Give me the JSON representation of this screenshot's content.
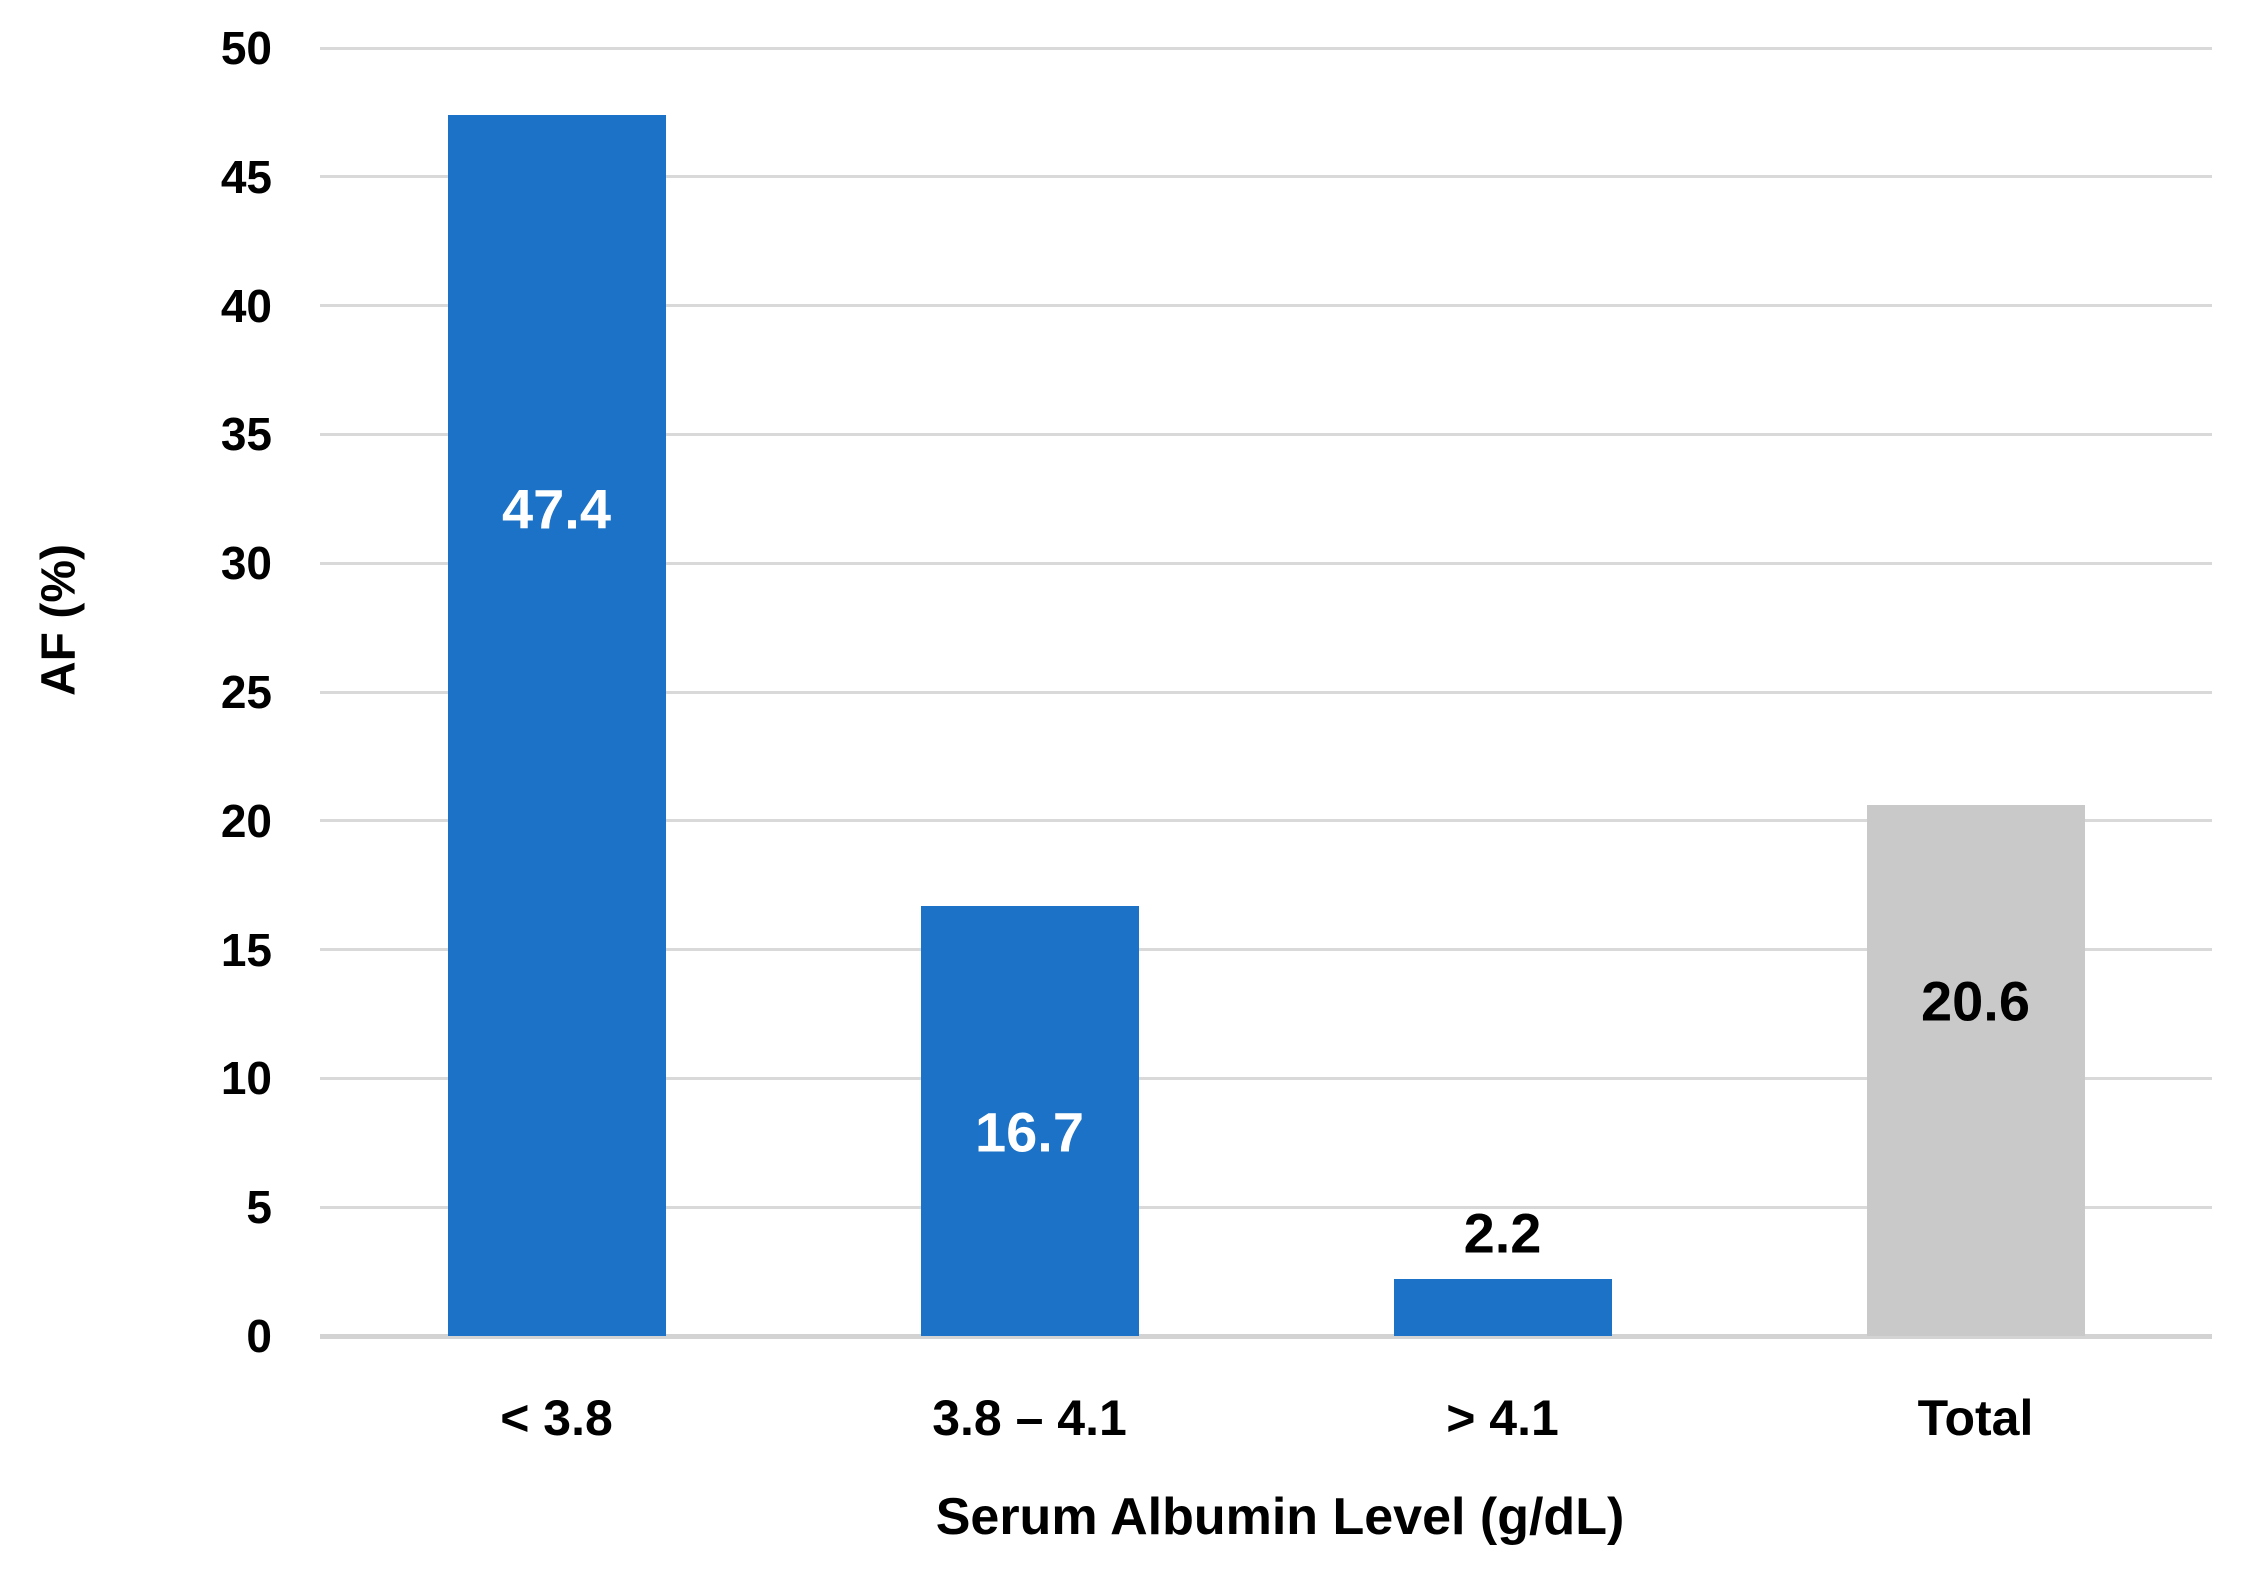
{
  "chart_data": {
    "type": "bar",
    "xlabel": "Serum Albumin Level (g/dL)",
    "ylabel": "AF (%)",
    "categories": [
      "< 3.8",
      "3.8 – 4.1",
      "> 4.1",
      "Total"
    ],
    "values": [
      47.4,
      16.7,
      2.2,
      20.6
    ],
    "data_labels": [
      "47.4",
      "16.7",
      "2.2",
      "20.6"
    ],
    "data_label_colors": [
      "#FFFFFF",
      "#FFFFFF",
      "#000000",
      "#000000"
    ],
    "data_label_at_value": [
      32.1,
      7.9,
      4.0,
      13.0
    ],
    "bar_colors": [
      "#1B72C6",
      "#1B72C6",
      "#1B72C6",
      "#C9C9C9"
    ],
    "ylim": [
      0,
      50
    ],
    "ytick_step": 5,
    "yticks": [
      "0",
      "5",
      "10",
      "15",
      "20",
      "25",
      "30",
      "35",
      "40",
      "45",
      "50"
    ],
    "grid": true,
    "legend": "none",
    "gridline_color": "#D9D9D9",
    "axis_line_color": "#D3D3D3",
    "background": "#FFFFFF"
  }
}
